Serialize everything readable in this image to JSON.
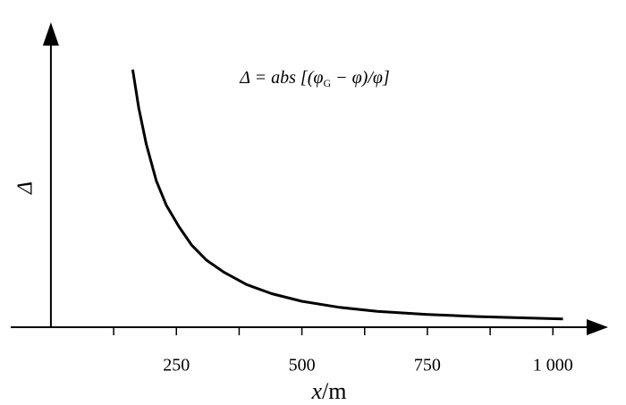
{
  "chart_data": {
    "type": "line",
    "annotation": {
      "prefix": "Δ = abs [(φ",
      "sub": "G",
      "suffix": " − φ)/φ]"
    },
    "y_label": "Δ",
    "x_label_var": "x",
    "x_label_unit": "/m",
    "xlim": [
      -80,
      1110
    ],
    "ylim": [
      0,
      1
    ],
    "xticks": [
      250,
      500,
      750,
      {
        "value": 1000,
        "label": "1 000"
      }
    ],
    "xminorticks": [
      125,
      375,
      625,
      875
    ],
    "series": [
      {
        "color": "#000000",
        "x": [
          163,
          175,
          190,
          210,
          230,
          255,
          280,
          310,
          345,
          390,
          440,
          500,
          575,
          650,
          750,
          850,
          1020
        ],
        "values": [
          0.845,
          0.72,
          0.6,
          0.48,
          0.4,
          0.33,
          0.27,
          0.22,
          0.18,
          0.14,
          0.11,
          0.085,
          0.065,
          0.052,
          0.042,
          0.035,
          0.027
        ]
      }
    ]
  }
}
